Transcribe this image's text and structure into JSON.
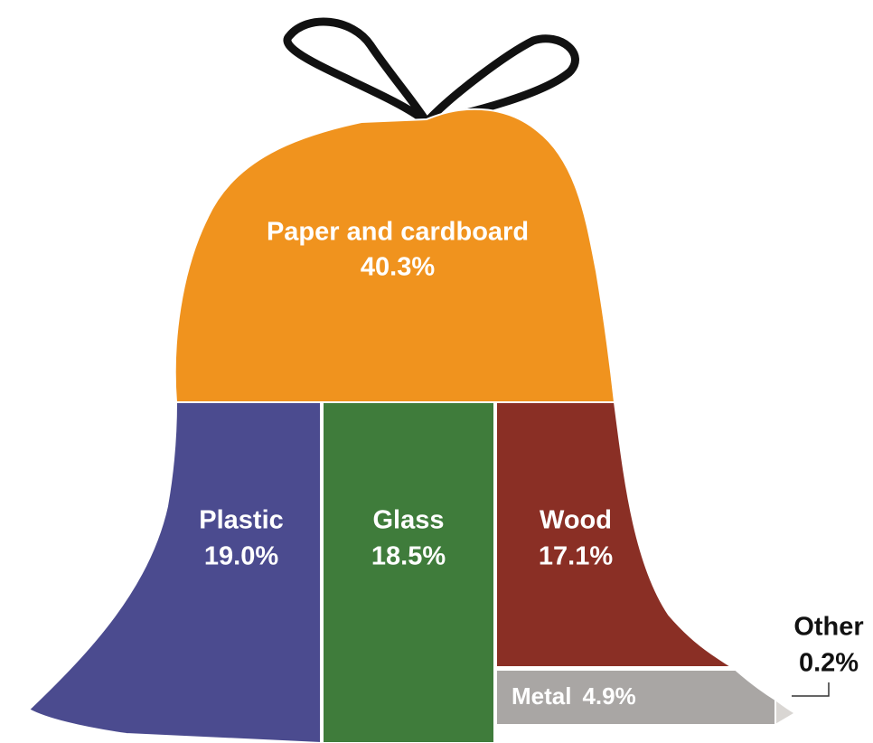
{
  "chart_data": {
    "type": "bag",
    "categories": [
      "Paper and cardboard",
      "Plastic",
      "Glass",
      "Wood",
      "Metal",
      "Other"
    ],
    "values": [
      40.3,
      19.0,
      18.5,
      17.1,
      4.9,
      0.2
    ],
    "value_labels": [
      "40.3%",
      "19.0%",
      "18.5%",
      "17.1%",
      "4.9%",
      "0.2%"
    ],
    "colors": [
      "#f0931e",
      "#4b4b8f",
      "#3f7c3b",
      "#8a2f25",
      "#a9a6a4",
      "#d9d6d3"
    ]
  }
}
